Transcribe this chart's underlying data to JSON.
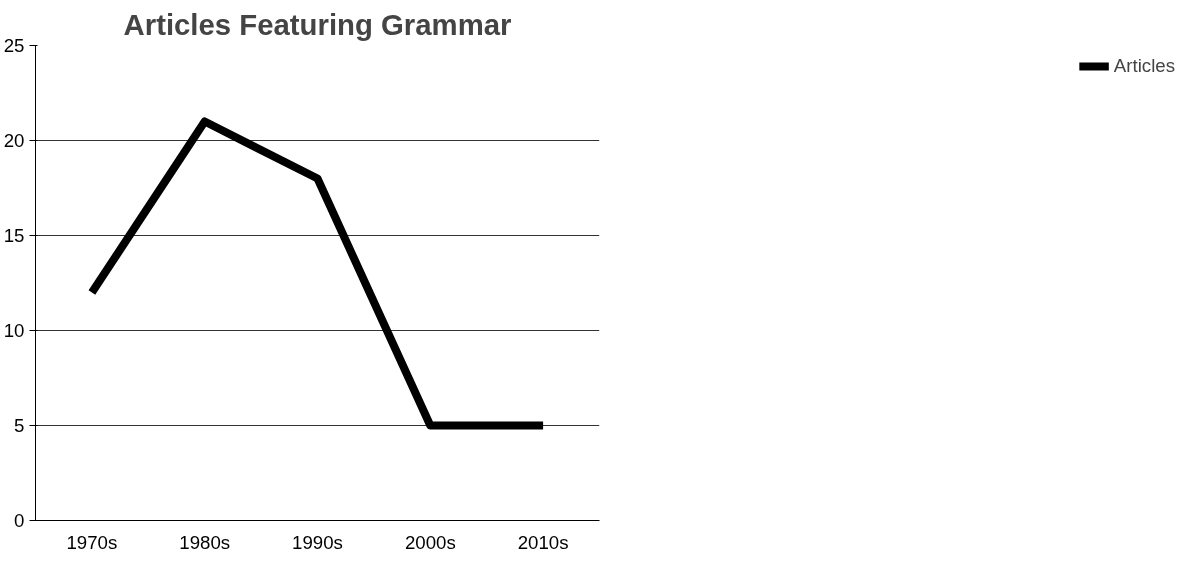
{
  "chart_data": {
    "type": "line",
    "title": "Articles Featuring Grammar",
    "categories": [
      "1970s",
      "1980s",
      "1990s",
      "2000s",
      "2010s"
    ],
    "series": [
      {
        "name": "Articles",
        "color": "#000000",
        "values": [
          12,
          21,
          18,
          5,
          5
        ]
      }
    ],
    "ylim": [
      0,
      25
    ],
    "yticks": [
      0,
      5,
      10,
      15,
      20,
      25
    ],
    "grid": "y",
    "legend": "right",
    "marker": "none",
    "line_style": "solid"
  }
}
